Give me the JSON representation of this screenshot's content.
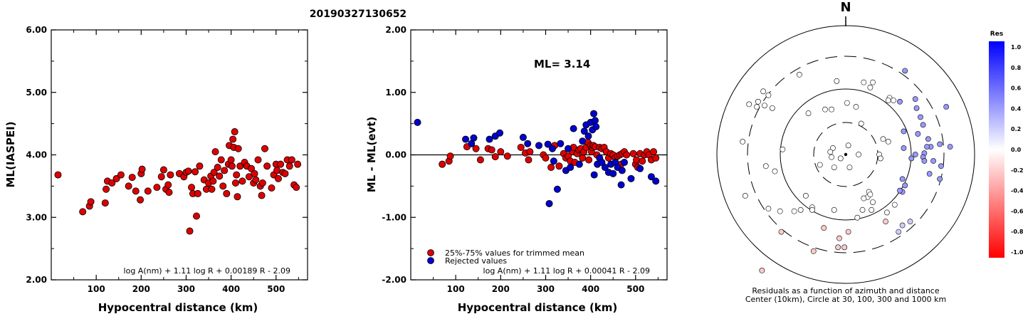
{
  "title": "20190327130652",
  "colors": {
    "accepted": "#dd0000",
    "rejected": "#0000cc"
  },
  "chart_data": [
    {
      "type": "scatter",
      "title": "",
      "xlabel": "Hypocentral distance (km)",
      "ylabel": "ML(IASPEI)",
      "xlim": [
        0,
        570
      ],
      "ylim": [
        2.0,
        6.0
      ],
      "xticks": [
        "100",
        "200",
        "300",
        "400",
        "500"
      ],
      "yticks": [
        "2.00",
        "3.00",
        "4.00",
        "5.00",
        "6.00"
      ],
      "formula": "log A(nm) + 1.11 log R + 0.00189 R - 2.09",
      "points": [
        [
          15,
          3.68
        ],
        [
          70,
          3.09
        ],
        [
          85,
          3.18
        ],
        [
          88,
          3.25
        ],
        [
          120,
          3.23
        ],
        [
          122,
          3.45
        ],
        [
          125,
          3.58
        ],
        [
          135,
          3.55
        ],
        [
          145,
          3.62
        ],
        [
          155,
          3.68
        ],
        [
          172,
          3.5
        ],
        [
          180,
          3.64
        ],
        [
          188,
          3.42
        ],
        [
          198,
          3.28
        ],
        [
          200,
          3.7
        ],
        [
          202,
          3.77
        ],
        [
          215,
          3.42
        ],
        [
          235,
          3.48
        ],
        [
          245,
          3.65
        ],
        [
          250,
          3.76
        ],
        [
          255,
          3.45
        ],
        [
          260,
          3.52
        ],
        [
          262,
          3.4
        ],
        [
          265,
          3.68
        ],
        [
          285,
          3.7
        ],
        [
          295,
          3.65
        ],
        [
          300,
          3.72
        ],
        [
          305,
          3.74
        ],
        [
          308,
          2.78
        ],
        [
          312,
          3.48
        ],
        [
          315,
          3.38
        ],
        [
          320,
          3.73
        ],
        [
          323,
          3.02
        ],
        [
          326,
          3.38
        ],
        [
          330,
          3.82
        ],
        [
          340,
          3.6
        ],
        [
          345,
          3.45
        ],
        [
          350,
          3.55
        ],
        [
          355,
          3.66
        ],
        [
          357,
          3.45
        ],
        [
          360,
          3.58
        ],
        [
          362,
          3.72
        ],
        [
          365,
          4.05
        ],
        [
          370,
          3.8
        ],
        [
          374,
          3.66
        ],
        [
          378,
          3.92
        ],
        [
          382,
          3.5
        ],
        [
          385,
          3.75
        ],
        [
          390,
          3.38
        ],
        [
          394,
          3.85
        ],
        [
          396,
          4.15
        ],
        [
          400,
          3.92
        ],
        [
          402,
          3.82
        ],
        [
          404,
          4.25
        ],
        [
          406,
          4.12
        ],
        [
          408,
          4.37
        ],
        [
          410,
          3.55
        ],
        [
          412,
          3.68
        ],
        [
          414,
          3.33
        ],
        [
          416,
          4.1
        ],
        [
          420,
          3.82
        ],
        [
          425,
          3.58
        ],
        [
          430,
          3.88
        ],
        [
          435,
          3.82
        ],
        [
          440,
          3.65
        ],
        [
          445,
          3.78
        ],
        [
          450,
          3.55
        ],
        [
          452,
          3.7
        ],
        [
          455,
          3.6
        ],
        [
          460,
          3.92
        ],
        [
          465,
          3.5
        ],
        [
          468,
          3.35
        ],
        [
          470,
          3.55
        ],
        [
          475,
          4.1
        ],
        [
          480,
          3.82
        ],
        [
          490,
          3.47
        ],
        [
          495,
          3.68
        ],
        [
          500,
          3.85
        ],
        [
          502,
          3.75
        ],
        [
          505,
          3.62
        ],
        [
          510,
          3.85
        ],
        [
          515,
          3.72
        ],
        [
          520,
          3.7
        ],
        [
          525,
          3.92
        ],
        [
          530,
          3.82
        ],
        [
          535,
          3.92
        ],
        [
          540,
          3.52
        ],
        [
          545,
          3.48
        ],
        [
          548,
          3.85
        ]
      ]
    },
    {
      "type": "scatter",
      "title": "",
      "xlabel": "Hypocentral distance (km)",
      "ylabel": "ML - ML(evt)",
      "xlim": [
        0,
        570
      ],
      "ylim": [
        -2.0,
        2.0
      ],
      "xticks": [
        "100",
        "200",
        "300",
        "400",
        "500"
      ],
      "yticks": [
        "-2.00",
        "-1.00",
        "0.00",
        "1.00",
        "2.00"
      ],
      "annotation": "ML= 3.14",
      "legend": [
        "25%-75% values for trimmed mean",
        "Rejected values"
      ],
      "legend_position": "bottom-left",
      "formula": "log A(nm) + 1.11 log R + 0.00041 R - 2.09",
      "accepted": [
        [
          70,
          -0.15
        ],
        [
          85,
          -0.1
        ],
        [
          88,
          -0.02
        ],
        [
          125,
          0.13
        ],
        [
          145,
          0.1
        ],
        [
          155,
          -0.08
        ],
        [
          172,
          0.1
        ],
        [
          180,
          0.08
        ],
        [
          188,
          -0.03
        ],
        [
          200,
          0.05
        ],
        [
          215,
          -0.02
        ],
        [
          245,
          0.12
        ],
        [
          255,
          0.03
        ],
        [
          262,
          -0.08
        ],
        [
          265,
          0.05
        ],
        [
          295,
          0.0
        ],
        [
          300,
          -0.05
        ],
        [
          312,
          -0.2
        ],
        [
          320,
          0.15
        ],
        [
          330,
          -0.18
        ],
        [
          340,
          0.02
        ],
        [
          345,
          -0.05
        ],
        [
          350,
          -0.02
        ],
        [
          355,
          -0.1
        ],
        [
          360,
          0.05
        ],
        [
          362,
          0.12
        ],
        [
          365,
          -0.12
        ],
        [
          370,
          0.02
        ],
        [
          374,
          0.08
        ],
        [
          378,
          0.1
        ],
        [
          382,
          -0.05
        ],
        [
          385,
          0.05
        ],
        [
          390,
          0.12
        ],
        [
          394,
          0.2
        ],
        [
          396,
          -0.08
        ],
        [
          400,
          0.15
        ],
        [
          402,
          0.05
        ],
        [
          404,
          0.12
        ],
        [
          406,
          0.15
        ],
        [
          410,
          0.13
        ],
        [
          414,
          0.0
        ],
        [
          420,
          0.12
        ],
        [
          425,
          0.1
        ],
        [
          430,
          0.12
        ],
        [
          435,
          0.05
        ],
        [
          440,
          -0.05
        ],
        [
          445,
          0.02
        ],
        [
          450,
          0.0
        ],
        [
          455,
          -0.05
        ],
        [
          460,
          -0.02
        ],
        [
          465,
          0.0
        ],
        [
          468,
          -0.15
        ],
        [
          470,
          0.02
        ],
        [
          475,
          0.05
        ],
        [
          480,
          0.0
        ],
        [
          495,
          0.02
        ],
        [
          500,
          -0.15
        ],
        [
          502,
          -0.08
        ],
        [
          505,
          -0.2
        ],
        [
          510,
          0.02
        ],
        [
          515,
          -0.1
        ],
        [
          520,
          0.0
        ],
        [
          525,
          0.05
        ],
        [
          530,
          0.0
        ],
        [
          535,
          -0.08
        ],
        [
          540,
          0.05
        ],
        [
          545,
          -0.05
        ]
      ],
      "rejected": [
        [
          15,
          0.52
        ],
        [
          122,
          0.25
        ],
        [
          135,
          0.18
        ],
        [
          140,
          0.27
        ],
        [
          175,
          0.25
        ],
        [
          188,
          0.3
        ],
        [
          198,
          0.35
        ],
        [
          250,
          0.28
        ],
        [
          260,
          0.18
        ],
        [
          285,
          0.15
        ],
        [
          305,
          0.17
        ],
        [
          308,
          -0.78
        ],
        [
          315,
          0.1
        ],
        [
          318,
          -0.1
        ],
        [
          326,
          -0.55
        ],
        [
          333,
          0.18
        ],
        [
          345,
          -0.25
        ],
        [
          350,
          0.1
        ],
        [
          355,
          -0.2
        ],
        [
          362,
          0.42
        ],
        [
          375,
          -0.15
        ],
        [
          382,
          0.22
        ],
        [
          386,
          0.38
        ],
        [
          390,
          0.48
        ],
        [
          395,
          0.3
        ],
        [
          400,
          0.52
        ],
        [
          404,
          0.4
        ],
        [
          407,
          0.66
        ],
        [
          410,
          0.55
        ],
        [
          412,
          0.45
        ],
        [
          415,
          -0.15
        ],
        [
          408,
          -0.32
        ],
        [
          420,
          -0.05
        ],
        [
          425,
          -0.12
        ],
        [
          432,
          -0.2
        ],
        [
          440,
          -0.28
        ],
        [
          445,
          -0.15
        ],
        [
          450,
          -0.3
        ],
        [
          455,
          -0.12
        ],
        [
          460,
          -0.2
        ],
        [
          468,
          -0.48
        ],
        [
          470,
          -0.25
        ],
        [
          475,
          -0.12
        ],
        [
          490,
          -0.38
        ],
        [
          510,
          -0.22
        ],
        [
          535,
          -0.35
        ],
        [
          545,
          -0.42
        ]
      ]
    },
    {
      "type": "scatter",
      "title": "",
      "north_label": "N",
      "caption_line1": "Residuals as a function of azimuth and distance",
      "caption_line2": "Center (10km), Circle at 30, 100, 300 and 1000 km",
      "colorbar_title": "Res",
      "colorbar_ticks": [
        "1.0",
        "0.8",
        "0.6",
        "0.4",
        "0.2",
        "0.0",
        "-0.2",
        "-0.4",
        "-0.6",
        "-0.8",
        "-1.0"
      ],
      "rings_km": [
        30,
        100,
        300,
        1000
      ],
      "stations": [
        [
          -0.17,
          -0.57
        ],
        [
          0.03,
          -0.1
        ],
        [
          -0.65,
          -0.9
        ],
        [
          -0.05,
          -0.65
        ],
        [
          -0.78,
          -0.32
        ],
        [
          -0.69,
          0.37
        ],
        [
          -0.8,
          0.1
        ],
        [
          0.41,
          -0.6
        ],
        [
          0.44,
          -0.55
        ],
        [
          0.18,
          -0.29
        ],
        [
          0.17,
          -0.33
        ],
        [
          -0.6,
          0.46
        ],
        [
          0.31,
          -0.52
        ],
        [
          0.26,
          0.0
        ],
        [
          0.1,
          0.0
        ],
        [
          -0.2,
          -0.08
        ],
        [
          -0.26,
          -0.41
        ],
        [
          -0.35,
          -0.43
        ],
        [
          0.45,
          0.18
        ],
        [
          0.32,
          -0.45
        ],
        [
          0.61,
          0.01
        ],
        [
          0.66,
          0.06
        ],
        [
          0.54,
          0.0
        ],
        [
          0.13,
          -0.43
        ],
        [
          0.56,
          0.16
        ],
        [
          0.6,
          -0.02
        ],
        [
          -0.11,
          0.35
        ],
        [
          0.29,
          0.12
        ],
        [
          0.42,
          0.41
        ],
        [
          0.46,
          -0.24
        ],
        [
          -0.51,
          -0.44
        ],
        [
          0.01,
          0.4
        ],
        [
          -0.1,
          0.05
        ],
        [
          0.34,
          0.44
        ],
        [
          0.12,
          0.24
        ],
        [
          0.2,
          -0.43
        ],
        [
          -0.5,
          -0.6
        ],
        [
          -0.01,
          -0.72
        ],
        [
          0.5,
          -0.52
        ],
        [
          -0.25,
          -0.75
        ],
        [
          -0.4,
          -0.44
        ],
        [
          0.33,
          0.1
        ],
        [
          0.54,
          0.43
        ],
        [
          0.38,
          -0.39
        ],
        [
          0.73,
          -0.19
        ],
        [
          0.55,
          0.36
        ],
        [
          -0.63,
          0.38
        ],
        [
          0.02,
          0.07
        ],
        [
          -0.57,
          0.36
        ],
        [
          0.21,
          -0.37
        ],
        [
          0.6,
          0.23
        ],
        [
          0.14,
          0.56
        ],
        [
          -0.68,
          0.41
        ],
        [
          -0.6,
          -0.42
        ],
        [
          0.19,
          -0.31
        ],
        [
          0.08,
          0.37
        ],
        [
          0.64,
          0.12
        ],
        [
          -0.09,
          -0.43
        ],
        [
          0.68,
          -0.05
        ],
        [
          0.74,
          -0.09
        ],
        [
          0.44,
          -0.19
        ],
        [
          -0.62,
          -0.09
        ],
        [
          -0.75,
          0.39
        ],
        [
          0.81,
          0.06
        ],
        [
          0.58,
          0.29
        ],
        [
          -0.36,
          0.62
        ],
        [
          0.46,
          0.65
        ],
        [
          0.33,
          0.42
        ],
        [
          0.19,
          0.52
        ],
        [
          -0.55,
          -0.13
        ],
        [
          0.45,
          0.05
        ],
        [
          0.65,
          -0.15
        ],
        [
          -0.26,
          -0.43
        ],
        [
          -0.12,
          0.02
        ],
        [
          0.44,
          -0.29
        ],
        [
          0.37,
          0.42
        ],
        [
          0.21,
          0.56
        ],
        [
          0.27,
          -0.03
        ],
        [
          -0.29,
          0.32
        ],
        [
          0.51,
          -0.03
        ],
        [
          -0.49,
          0.04
        ],
        [
          -0.31,
          -0.32
        ],
        [
          -0.16,
          0.35
        ],
        [
          -0.04,
          -0.03
        ],
        [
          -0.64,
          0.49
        ],
        [
          0.02,
          -0.6
        ],
        [
          -0.07,
          0.57
        ],
        [
          -0.11,
          -0.02
        ],
        [
          0.42,
          -0.28
        ],
        [
          0.78,
          0.37
        ],
        [
          0.61,
          -0.05
        ],
        [
          -0.06,
          -0.72
        ],
        [
          0.09,
          -0.49
        ],
        [
          0.14,
          -0.34
        ],
        [
          0.73,
          0.08
        ],
        [
          0.63,
          0.06
        ],
        [
          -0.09,
          -0.1
        ]
      ]
    }
  ]
}
